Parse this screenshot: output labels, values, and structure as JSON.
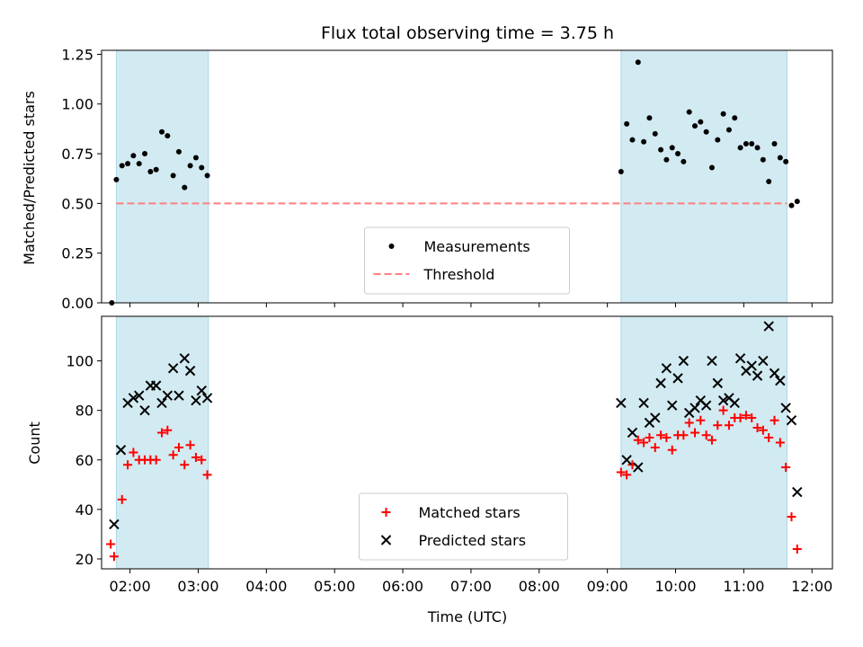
{
  "title": "Flux total observing time = 3.75 h",
  "colors": {
    "shade": "#add8e6",
    "threshold": "#ff7f7f",
    "measurements": "#000000",
    "matched": "#ff0000",
    "predicted": "#000000"
  },
  "chart_data": [
    {
      "type": "scatter",
      "ylabel": "Matched/Predicted stars",
      "ylim": [
        0,
        1.27
      ],
      "yticks": [
        0,
        0.25,
        0.5,
        0.75,
        1.0,
        1.25
      ],
      "ytick_labels": [
        "0.00",
        "0.25",
        "0.50",
        "0.75",
        "1.00",
        "1.25"
      ],
      "xlim": [
        "01:35",
        "12:18"
      ],
      "shaded_intervals": [
        [
          "01:48",
          "03:09"
        ],
        [
          "09:12",
          "11:38"
        ]
      ],
      "legend_position": "lower center",
      "threshold": {
        "name": "Threshold",
        "value": 0.5,
        "x_range": [
          "01:48",
          "11:38"
        ],
        "style": "dashed"
      },
      "series": [
        {
          "name": "Measurements",
          "marker": "dot",
          "points": [
            [
              "01:44",
              0.0
            ],
            [
              "01:48",
              0.62
            ],
            [
              "01:53",
              0.69
            ],
            [
              "01:58",
              0.7
            ],
            [
              "02:03",
              0.74
            ],
            [
              "02:08",
              0.7
            ],
            [
              "02:13",
              0.75
            ],
            [
              "02:18",
              0.66
            ],
            [
              "02:23",
              0.67
            ],
            [
              "02:28",
              0.86
            ],
            [
              "02:33",
              0.84
            ],
            [
              "02:38",
              0.64
            ],
            [
              "02:43",
              0.76
            ],
            [
              "02:48",
              0.58
            ],
            [
              "02:53",
              0.69
            ],
            [
              "02:58",
              0.73
            ],
            [
              "03:03",
              0.68
            ],
            [
              "03:08",
              0.64
            ],
            [
              "09:12",
              0.66
            ],
            [
              "09:17",
              0.9
            ],
            [
              "09:22",
              0.82
            ],
            [
              "09:27",
              1.21
            ],
            [
              "09:32",
              0.81
            ],
            [
              "09:37",
              0.93
            ],
            [
              "09:42",
              0.85
            ],
            [
              "09:47",
              0.77
            ],
            [
              "09:52",
              0.72
            ],
            [
              "09:57",
              0.78
            ],
            [
              "10:02",
              0.75
            ],
            [
              "10:07",
              0.71
            ],
            [
              "10:12",
              0.96
            ],
            [
              "10:17",
              0.89
            ],
            [
              "10:22",
              0.91
            ],
            [
              "10:27",
              0.86
            ],
            [
              "10:32",
              0.68
            ],
            [
              "10:37",
              0.82
            ],
            [
              "10:42",
              0.95
            ],
            [
              "10:47",
              0.87
            ],
            [
              "10:52",
              0.93
            ],
            [
              "10:57",
              0.78
            ],
            [
              "11:02",
              0.8
            ],
            [
              "11:07",
              0.8
            ],
            [
              "11:12",
              0.78
            ],
            [
              "11:17",
              0.72
            ],
            [
              "11:22",
              0.61
            ],
            [
              "11:27",
              0.8
            ],
            [
              "11:32",
              0.73
            ],
            [
              "11:37",
              0.71
            ],
            [
              "11:42",
              0.49
            ],
            [
              "11:47",
              0.51
            ]
          ]
        }
      ]
    },
    {
      "type": "scatter",
      "xlabel": "Time (UTC)",
      "ylabel": "Count",
      "ylim": [
        16,
        118
      ],
      "yticks": [
        20,
        40,
        60,
        80,
        100
      ],
      "ytick_labels": [
        "20",
        "40",
        "60",
        "80",
        "100"
      ],
      "xlim": [
        "01:35",
        "12:18"
      ],
      "xticks": [
        "02:00",
        "03:00",
        "04:00",
        "05:00",
        "06:00",
        "07:00",
        "08:00",
        "09:00",
        "10:00",
        "11:00",
        "12:00"
      ],
      "shaded_intervals": [
        [
          "01:48",
          "03:09"
        ],
        [
          "09:12",
          "11:38"
        ]
      ],
      "legend_position": "lower center",
      "series": [
        {
          "name": "Matched stars",
          "marker": "plus",
          "points": [
            [
              "01:43",
              26
            ],
            [
              "01:46",
              21
            ],
            [
              "01:53",
              44
            ],
            [
              "01:58",
              58
            ],
            [
              "02:03",
              63
            ],
            [
              "02:08",
              60
            ],
            [
              "02:13",
              60
            ],
            [
              "02:18",
              60
            ],
            [
              "02:23",
              60
            ],
            [
              "02:28",
              71
            ],
            [
              "02:33",
              72
            ],
            [
              "02:38",
              62
            ],
            [
              "02:43",
              65
            ],
            [
              "02:48",
              58
            ],
            [
              "02:53",
              66
            ],
            [
              "02:58",
              61
            ],
            [
              "03:03",
              60
            ],
            [
              "03:08",
              54
            ],
            [
              "09:12",
              55
            ],
            [
              "09:17",
              54
            ],
            [
              "09:22",
              58
            ],
            [
              "09:27",
              68
            ],
            [
              "09:32",
              67
            ],
            [
              "09:37",
              69
            ],
            [
              "09:42",
              65
            ],
            [
              "09:47",
              70
            ],
            [
              "09:52",
              69
            ],
            [
              "09:57",
              64
            ],
            [
              "10:02",
              70
            ],
            [
              "10:07",
              70
            ],
            [
              "10:12",
              75
            ],
            [
              "10:17",
              71
            ],
            [
              "10:22",
              76
            ],
            [
              "10:27",
              70
            ],
            [
              "10:32",
              68
            ],
            [
              "10:37",
              74
            ],
            [
              "10:42",
              80
            ],
            [
              "10:47",
              74
            ],
            [
              "10:52",
              77
            ],
            [
              "10:57",
              77
            ],
            [
              "11:02",
              78
            ],
            [
              "11:07",
              77
            ],
            [
              "11:12",
              73
            ],
            [
              "11:17",
              72
            ],
            [
              "11:22",
              69
            ],
            [
              "11:27",
              76
            ],
            [
              "11:32",
              67
            ],
            [
              "11:37",
              57
            ],
            [
              "11:42",
              37
            ],
            [
              "11:47",
              24
            ]
          ]
        },
        {
          "name": "Predicted stars",
          "marker": "x",
          "points": [
            [
              "01:46",
              34
            ],
            [
              "01:52",
              64
            ],
            [
              "01:58",
              83
            ],
            [
              "02:03",
              85
            ],
            [
              "02:08",
              86
            ],
            [
              "02:13",
              80
            ],
            [
              "02:18",
              90
            ],
            [
              "02:23",
              90
            ],
            [
              "02:28",
              83
            ],
            [
              "02:33",
              86
            ],
            [
              "02:38",
              97
            ],
            [
              "02:43",
              86
            ],
            [
              "02:48",
              101
            ],
            [
              "02:53",
              96
            ],
            [
              "02:58",
              84
            ],
            [
              "03:03",
              88
            ],
            [
              "03:08",
              85
            ],
            [
              "09:12",
              83
            ],
            [
              "09:17",
              60
            ],
            [
              "09:22",
              71
            ],
            [
              "09:27",
              57
            ],
            [
              "09:32",
              83
            ],
            [
              "09:37",
              75
            ],
            [
              "09:42",
              77
            ],
            [
              "09:47",
              91
            ],
            [
              "09:52",
              97
            ],
            [
              "09:57",
              82
            ],
            [
              "10:02",
              93
            ],
            [
              "10:07",
              100
            ],
            [
              "10:12",
              79
            ],
            [
              "10:17",
              81
            ],
            [
              "10:22",
              84
            ],
            [
              "10:27",
              82
            ],
            [
              "10:32",
              100
            ],
            [
              "10:37",
              91
            ],
            [
              "10:42",
              84
            ],
            [
              "10:47",
              85
            ],
            [
              "10:52",
              83
            ],
            [
              "10:57",
              101
            ],
            [
              "11:02",
              96
            ],
            [
              "11:07",
              98
            ],
            [
              "11:12",
              94
            ],
            [
              "11:17",
              100
            ],
            [
              "11:22",
              114
            ],
            [
              "11:27",
              95
            ],
            [
              "11:32",
              92
            ],
            [
              "11:37",
              81
            ],
            [
              "11:42",
              76
            ],
            [
              "11:47",
              47
            ]
          ]
        }
      ]
    }
  ]
}
